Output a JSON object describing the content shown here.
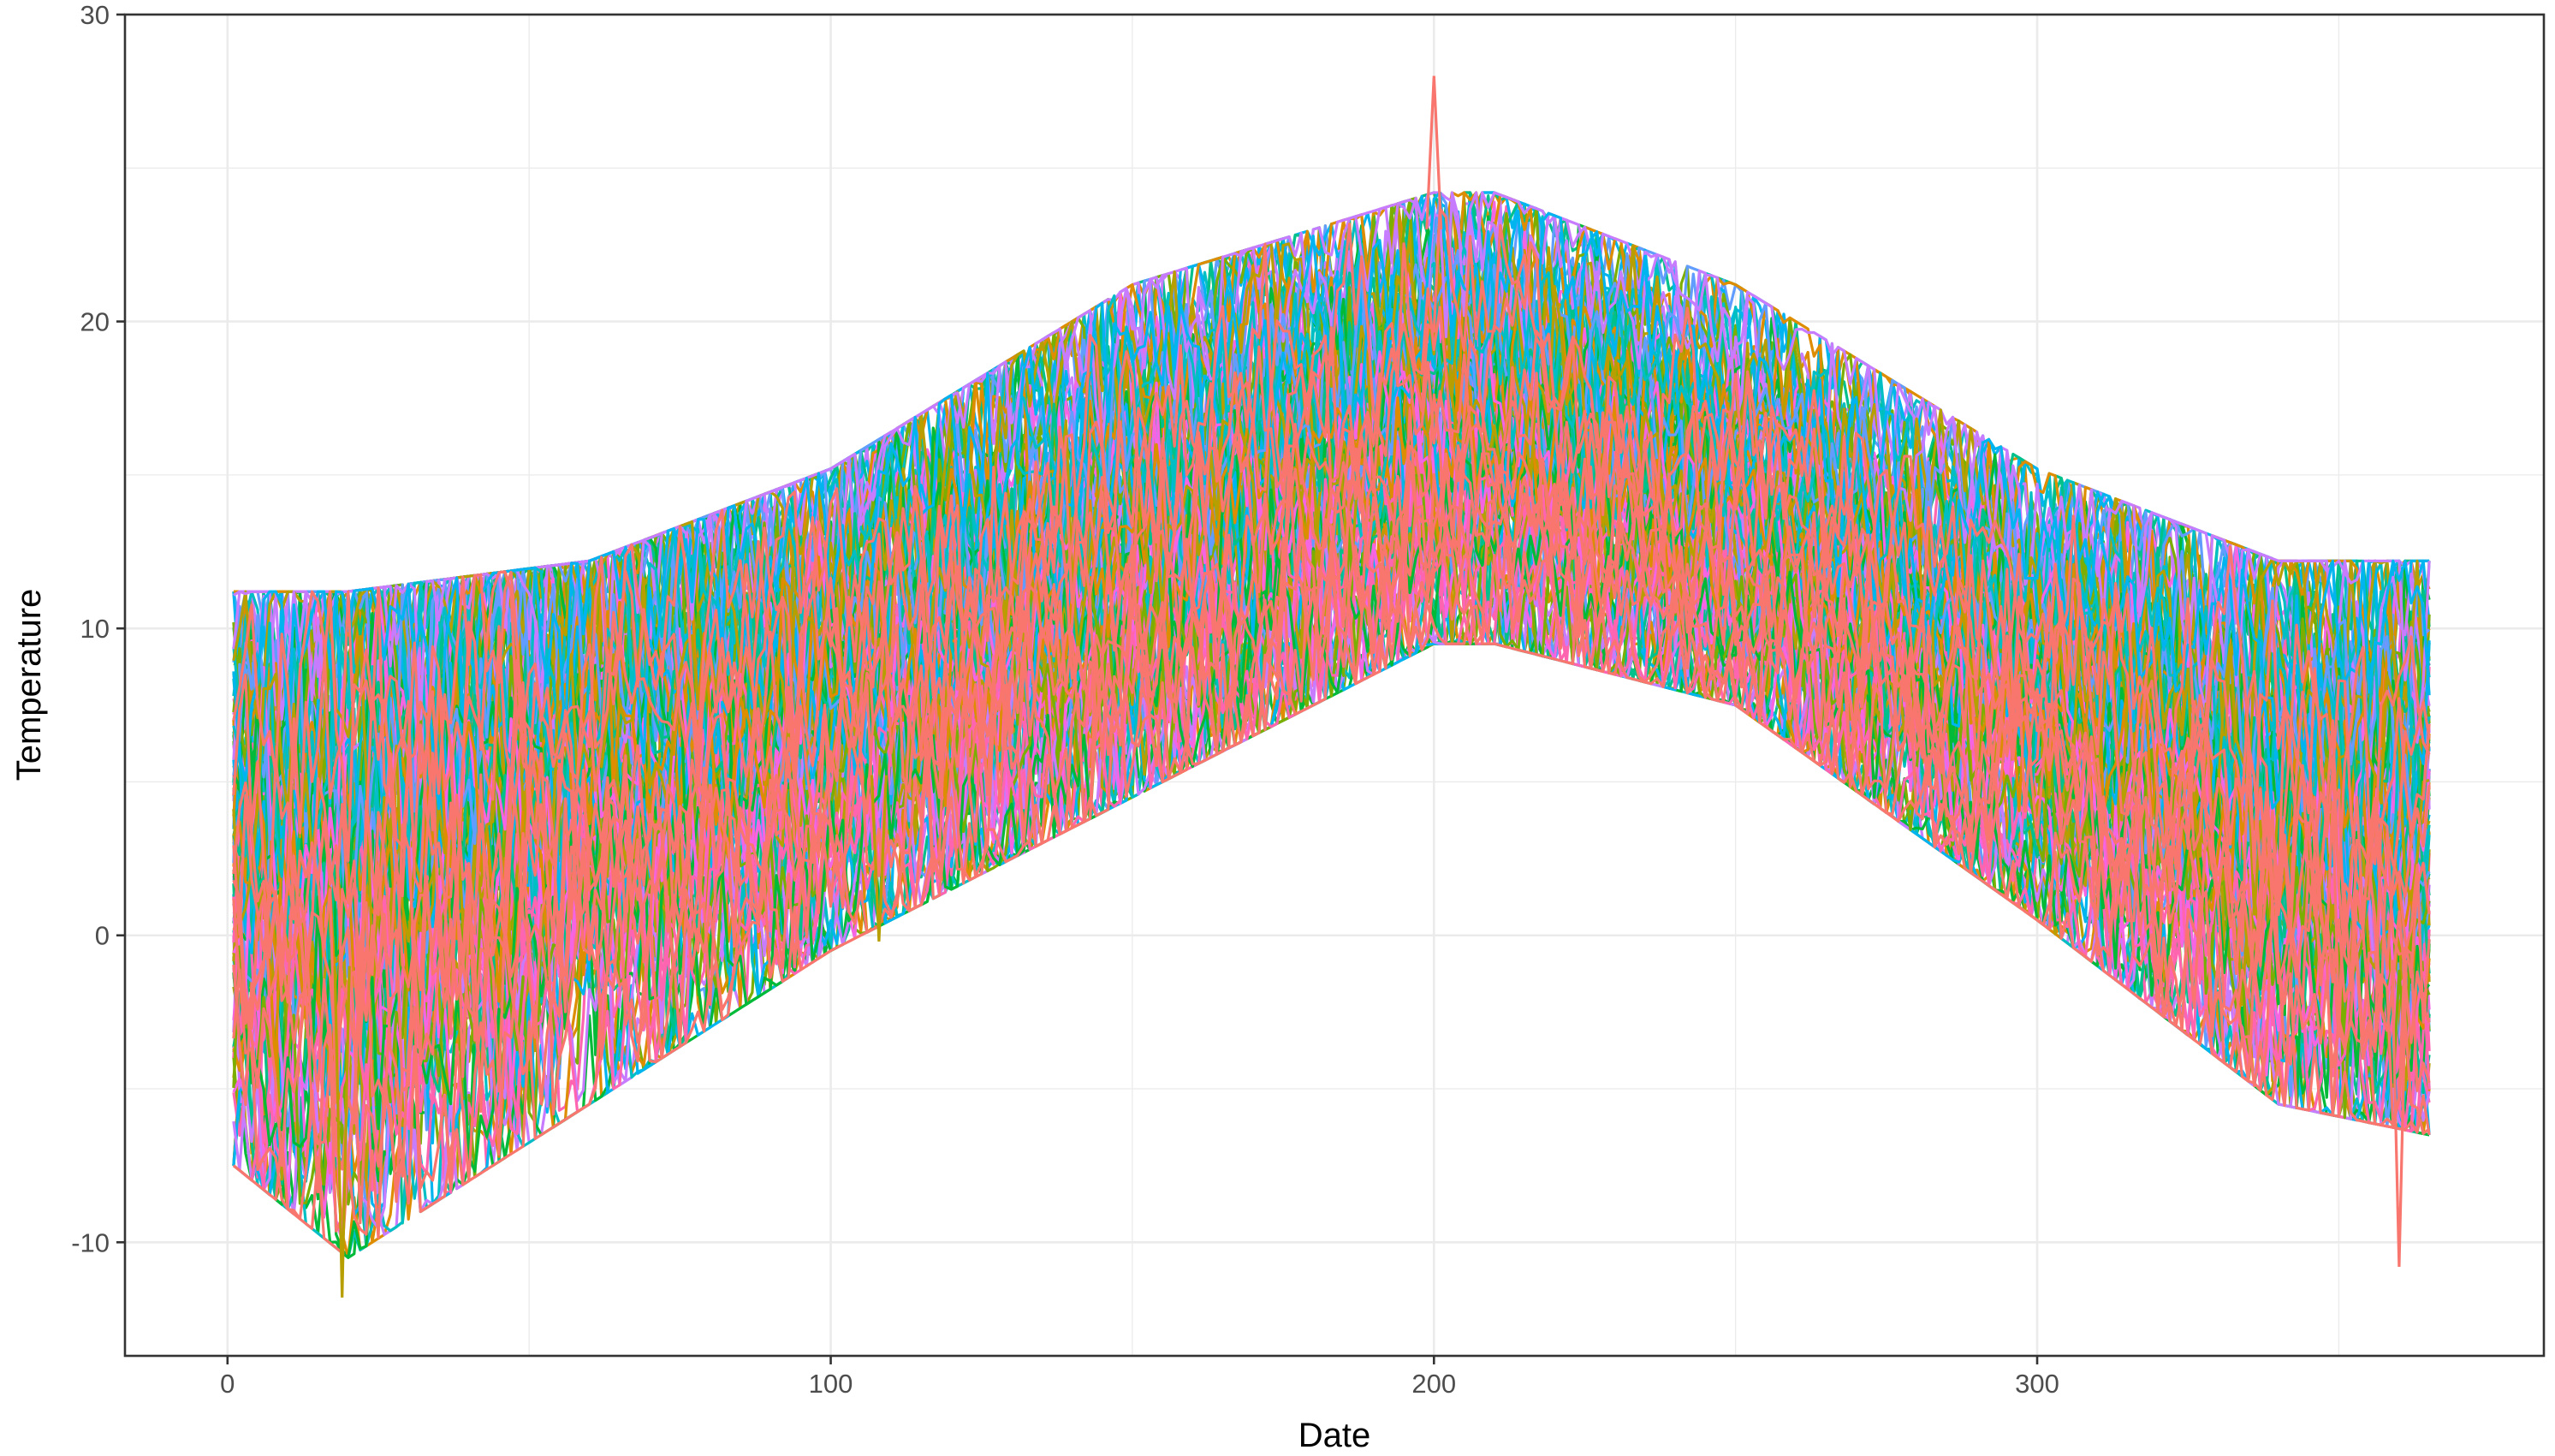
{
  "chart_data": {
    "type": "line",
    "title": "",
    "xlabel": "Date",
    "ylabel": "Temperature",
    "xlim": [
      -17,
      384
    ],
    "ylim": [
      -13.7,
      30
    ],
    "x_ticks": [
      0,
      100,
      200,
      300
    ],
    "x_tick_labels": [
      "0",
      "100",
      "200",
      "300"
    ],
    "y_ticks": [
      -10,
      0,
      10,
      20,
      30
    ],
    "y_tick_labels": [
      "-10",
      "0",
      "10",
      "20",
      "30"
    ],
    "grid": true,
    "legend": "none",
    "x_range": [
      1,
      365
    ],
    "series_count": 120,
    "series_template": {
      "description_of_shape": "daily temperature series with a seasonal cycle",
      "envelope_x": [
        1,
        20,
        60,
        100,
        150,
        200,
        210,
        250,
        300,
        340,
        365
      ],
      "envelope_low": [
        -6,
        -9,
        -4,
        1,
        6,
        11,
        11,
        9,
        2,
        -4,
        -5
      ],
      "envelope_high": [
        10,
        10,
        11,
        14,
        20,
        23,
        23,
        20,
        14,
        11,
        11
      ],
      "envelope_center": [
        3,
        3,
        5.5,
        8.5,
        13,
        17,
        17,
        14,
        8,
        4,
        3
      ]
    },
    "palette": [
      "#F8766D",
      "#DE8C00",
      "#B79F00",
      "#7CAE00",
      "#00BA38",
      "#00C08B",
      "#00BFC4",
      "#00B4F0",
      "#619CFF",
      "#C77CFF",
      "#F564E3",
      "#FF64B0"
    ],
    "highlight_points": [
      {
        "x": 200,
        "y": 28
      },
      {
        "x": 19,
        "y": -11.8
      },
      {
        "x": 360,
        "y": -10.8
      },
      {
        "x": 108,
        "y": -0.2
      }
    ]
  }
}
